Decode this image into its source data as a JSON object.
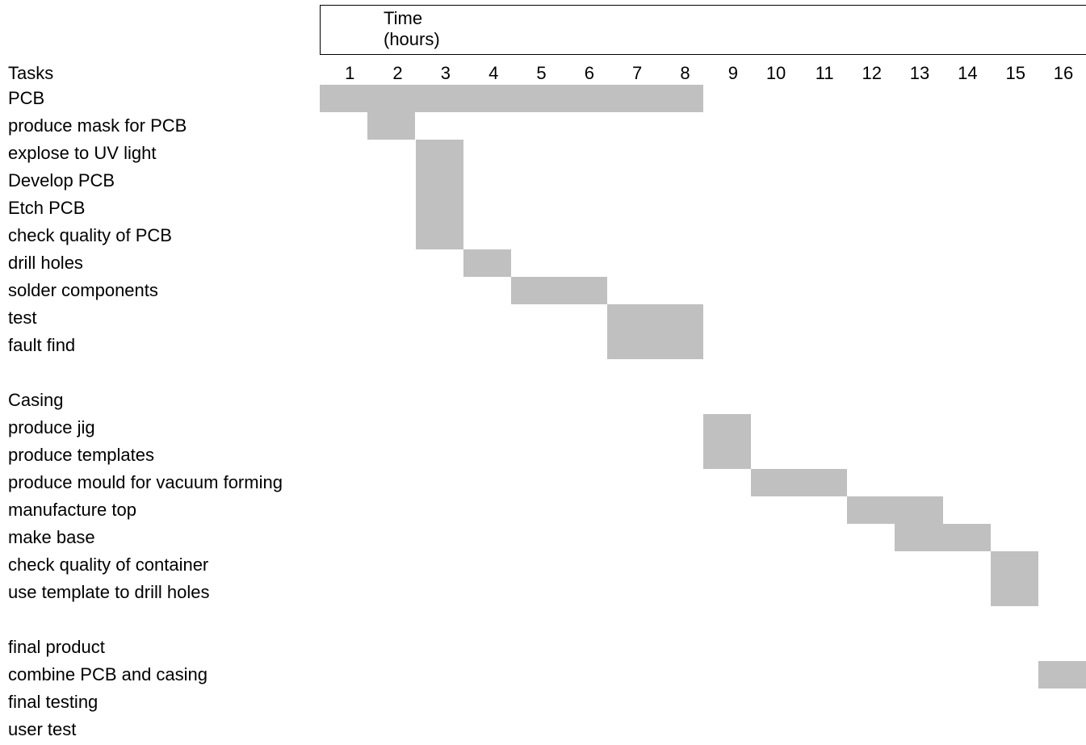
{
  "chart_data": {
    "type": "gantt",
    "title_lines": [
      "Time",
      "(hours)"
    ],
    "row_header": "Tasks",
    "hours": [
      "1",
      "2",
      "3",
      "4",
      "5",
      "6",
      "7",
      "8",
      "9",
      "10",
      "11",
      "12",
      "13",
      "14",
      "15",
      "16"
    ],
    "rows": [
      {
        "label": "PCB"
      },
      {
        "label": "produce mask for PCB"
      },
      {
        "label": "explose to UV light"
      },
      {
        "label": "Develop PCB"
      },
      {
        "label": "Etch PCB"
      },
      {
        "label": "check quality of PCB"
      },
      {
        "label": "drill holes"
      },
      {
        "label": "solder components"
      },
      {
        "label": "test"
      },
      {
        "label": "fault find"
      },
      {
        "label": ""
      },
      {
        "label": "Casing"
      },
      {
        "label": "produce jig"
      },
      {
        "label": "produce templates"
      },
      {
        "label": "produce mould for vacuum forming"
      },
      {
        "label": "manufacture top"
      },
      {
        "label": "make base"
      },
      {
        "label": "check quality of container"
      },
      {
        "label": "use template to drill holes"
      },
      {
        "label": ""
      },
      {
        "label": "final product"
      },
      {
        "label": "combine PCB and casing"
      },
      {
        "label": "final testing"
      },
      {
        "label": "user test"
      }
    ],
    "bars": [
      {
        "start_hour": 1,
        "end_hour": 8,
        "row_start": 0,
        "row_end": 0
      },
      {
        "start_hour": 2,
        "end_hour": 2,
        "row_start": 1,
        "row_end": 1
      },
      {
        "start_hour": 3,
        "end_hour": 3,
        "row_start": 2,
        "row_end": 5
      },
      {
        "start_hour": 4,
        "end_hour": 4,
        "row_start": 6,
        "row_end": 6
      },
      {
        "start_hour": 5,
        "end_hour": 6,
        "row_start": 7,
        "row_end": 7
      },
      {
        "start_hour": 7,
        "end_hour": 8,
        "row_start": 8,
        "row_end": 9
      },
      {
        "start_hour": 9,
        "end_hour": 9,
        "row_start": 12,
        "row_end": 13
      },
      {
        "start_hour": 10,
        "end_hour": 11,
        "row_start": 14,
        "row_end": 14
      },
      {
        "start_hour": 12,
        "end_hour": 13,
        "row_start": 15,
        "row_end": 15
      },
      {
        "start_hour": 13,
        "end_hour": 14,
        "row_start": 16,
        "row_end": 16
      },
      {
        "start_hour": 15,
        "end_hour": 15,
        "row_start": 17,
        "row_end": 18
      },
      {
        "start_hour": 16,
        "end_hour": 16,
        "row_start": 21,
        "row_end": 21
      }
    ],
    "bar_color": "#c0c0c0"
  }
}
